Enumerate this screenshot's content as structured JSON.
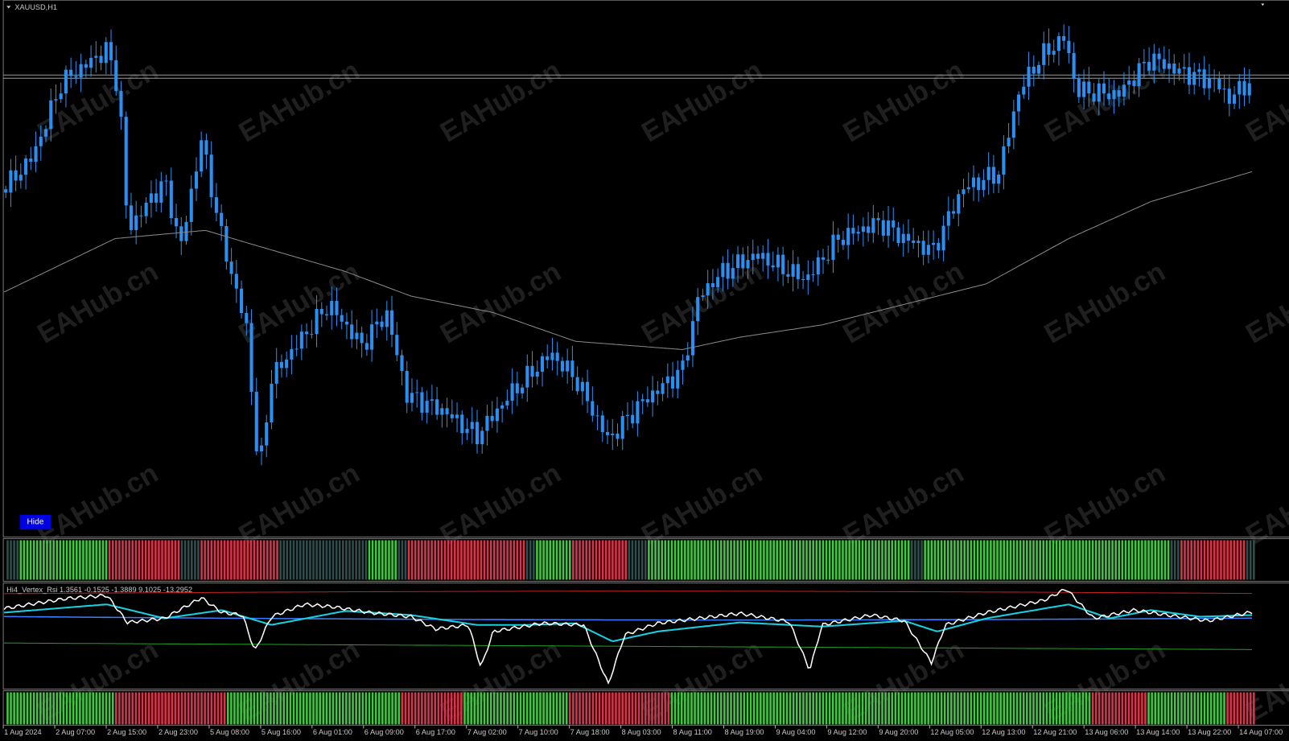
{
  "header": {
    "title": "XAUUSD,H1"
  },
  "button": {
    "label": "Hide"
  },
  "indicator": {
    "label": "Hi4_Vertex_Rsi 1.3561 -0.1525 -1.3889 9.1025 -13.2952"
  },
  "watermark": "EAHub.cn",
  "time_axis": {
    "labels": [
      "1 Aug 2024",
      "2 Aug 07:00",
      "2 Aug 15:00",
      "2 Aug 23:00",
      "5 Aug 08:00",
      "5 Aug 16:00",
      "6 Aug 01:00",
      "6 Aug 09:00",
      "6 Aug 17:00",
      "7 Aug 02:00",
      "7 Aug 10:00",
      "7 Aug 18:00",
      "8 Aug 03:00",
      "8 Aug 11:00",
      "8 Aug 19:00",
      "9 Aug 04:00",
      "9 Aug 12:00",
      "9 Aug 20:00",
      "12 Aug 05:00",
      "12 Aug 13:00",
      "12 Aug 21:00",
      "13 Aug 06:00",
      "13 Aug 14:00",
      "13 Aug 22:00",
      "14 Aug 07:00"
    ]
  }
}
